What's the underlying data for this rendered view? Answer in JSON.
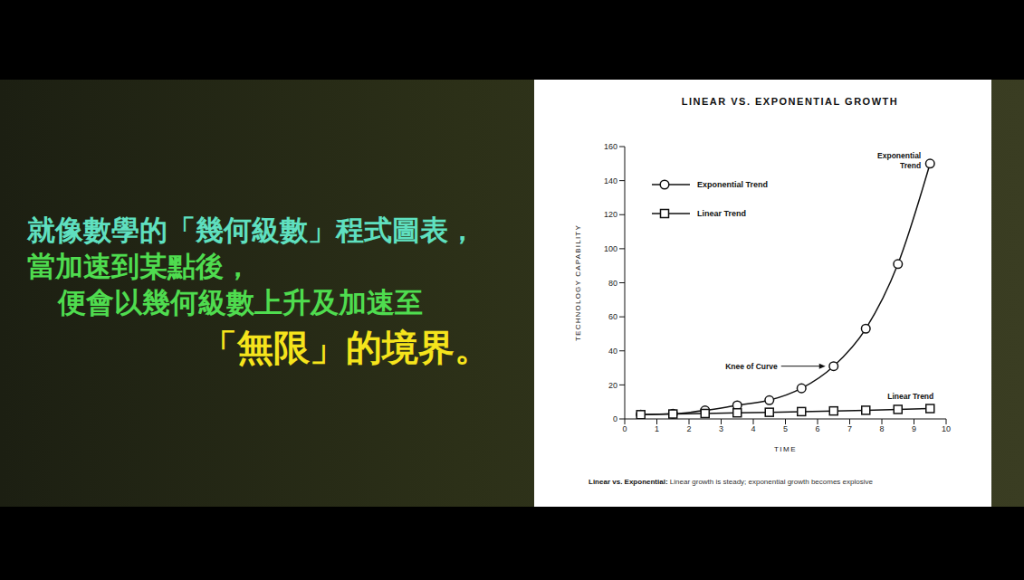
{
  "side_text": [
    {
      "text": "就像數學的「幾何級數」程式圖表，",
      "color": "#5fe0c0"
    },
    {
      "text": "當加速到某點後，",
      "color": "#4fdc4f"
    },
    {
      "text": "便會以幾何級數上升及加速至",
      "color": "#4fdc4f"
    },
    {
      "text": "「無限」的境界。",
      "color": "#f5e41c"
    }
  ],
  "chart_data": {
    "type": "line",
    "title": "LINEAR VS. EXPONENTIAL GROWTH",
    "x_label": "TIME",
    "y_label": "TECHNOLOGY CAPABILITY",
    "x": [
      0.5,
      1.5,
      2.5,
      3.5,
      4.5,
      5.5,
      6.5,
      7.5,
      8.5,
      9.5
    ],
    "series": [
      {
        "name": "Exponential Trend",
        "color": "#111111",
        "marker": "circle",
        "line_style": "solid",
        "values": [
          2.5,
          3,
          5,
          8,
          11,
          18,
          31,
          53,
          91,
          150
        ]
      },
      {
        "name": "Linear Trend",
        "color": "#111111",
        "marker": "square",
        "line_style": "solid",
        "values": [
          2.5,
          2.9,
          3.2,
          3.6,
          3.9,
          4.3,
          4.7,
          5.1,
          5.6,
          6.1
        ]
      }
    ],
    "xlim": [
      0,
      10
    ],
    "ylim": [
      0,
      160
    ],
    "xticks": [
      0,
      1,
      2,
      3,
      4,
      5,
      6,
      7,
      8,
      9,
      10
    ],
    "yticks": [
      0,
      20,
      40,
      60,
      80,
      100,
      120,
      140,
      160
    ],
    "grid": false,
    "legend": "upper left",
    "annotations": [
      {
        "text": "Knee of Curve",
        "x": 6.5,
        "y": 31
      },
      {
        "text": "Exponential Trend",
        "x": 9.5,
        "y": 150
      },
      {
        "text": "Linear Trend",
        "x": 9.5,
        "y": 6.1
      }
    ],
    "caption": {
      "bold": "Linear vs. Exponential:",
      "text": "Linear growth is steady; exponential growth becomes explosive"
    }
  }
}
